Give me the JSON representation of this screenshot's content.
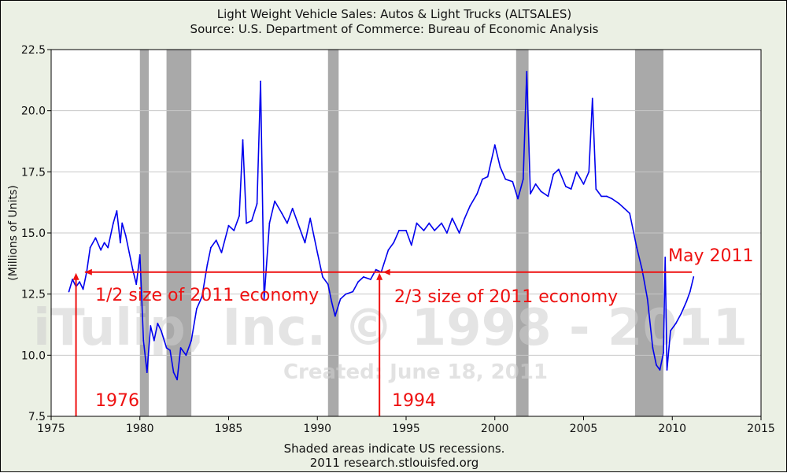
{
  "header": {
    "title_line1": "Light Weight Vehicle Sales: Autos & Light Trucks (ALTSALES)",
    "title_line2": "Source: U.S. Department of Commerce: Bureau of Economic Analysis"
  },
  "footer": {
    "line1": "Shaded areas indicate US recessions.",
    "line2": "2011 research.stlouisfed.org"
  },
  "watermark": {
    "main": "iTulip, Inc. © 1998 - 2011",
    "created": "Created: June 18, 2011"
  },
  "colors": {
    "background": "#ebf0e4",
    "plot_background": "#ffffff",
    "series": "#0000ee",
    "recession": "#a9a9a9",
    "annotation": "#ee1111"
  },
  "chart_data": {
    "type": "line",
    "title": "Light Weight Vehicle Sales: Autos & Light Trucks (ALTSALES)",
    "subtitle": "Source: U.S. Department of Commerce: Bureau of Economic Analysis",
    "xlabel": "",
    "ylabel": "(Millions of Units)",
    "xlim": [
      1975,
      2015
    ],
    "ylim": [
      7.5,
      22.5
    ],
    "x_ticks": [
      1975,
      1980,
      1985,
      1990,
      1995,
      2000,
      2005,
      2010,
      2015
    ],
    "y_ticks": [
      "7.5",
      "10.0",
      "12.5",
      "15.0",
      "17.5",
      "20.0",
      "22.5"
    ],
    "grid": true,
    "recessions": [
      [
        1980.0,
        1980.5
      ],
      [
        1981.5,
        1982.9
      ],
      [
        1990.6,
        1991.2
      ],
      [
        2001.2,
        2001.9
      ],
      [
        2007.9,
        2009.5
      ]
    ],
    "series": [
      {
        "x": [
          1976.0,
          1976.2,
          1976.4,
          1976.6,
          1976.8,
          1977.0,
          1977.2,
          1977.5,
          1977.8,
          1978.0,
          1978.2,
          1978.5,
          1978.7,
          1978.9,
          1979.0,
          1979.2,
          1979.4,
          1979.6,
          1979.8,
          1980.0,
          1980.2,
          1980.4,
          1980.6,
          1980.8,
          1981.0,
          1981.2,
          1981.5,
          1981.7,
          1981.9,
          1982.1,
          1982.3,
          1982.6,
          1982.9,
          1983.2,
          1983.5,
          1983.8,
          1984.0,
          1984.3,
          1984.6,
          1985.0,
          1985.3,
          1985.6,
          1985.8,
          1986.0,
          1986.3,
          1986.6,
          1986.8,
          1987.0,
          1987.3,
          1987.6,
          1988.0,
          1988.3,
          1988.6,
          1989.0,
          1989.3,
          1989.6,
          1990.0,
          1990.3,
          1990.6,
          1990.8,
          1991.0,
          1991.3,
          1991.6,
          1992.0,
          1992.3,
          1992.6,
          1993.0,
          1993.3,
          1993.6,
          1994.0,
          1994.3,
          1994.6,
          1995.0,
          1995.3,
          1995.6,
          1996.0,
          1996.3,
          1996.6,
          1997.0,
          1997.3,
          1997.6,
          1998.0,
          1998.3,
          1998.6,
          1999.0,
          1999.3,
          1999.6,
          2000.0,
          2000.3,
          2000.6,
          2001.0,
          2001.3,
          2001.6,
          2001.8,
          2002.0,
          2002.3,
          2002.6,
          2003.0,
          2003.3,
          2003.6,
          2004.0,
          2004.3,
          2004.6,
          2005.0,
          2005.3,
          2005.5,
          2005.7,
          2006.0,
          2006.3,
          2006.6,
          2007.0,
          2007.3,
          2007.6,
          2008.0,
          2008.3,
          2008.6,
          2008.9,
          2009.1,
          2009.3,
          2009.5,
          2009.6,
          2009.7,
          2009.9,
          2010.2,
          2010.5,
          2010.8,
          2011.0,
          2011.2
        ],
        "y": [
          12.6,
          13.1,
          12.8,
          13.0,
          12.7,
          13.4,
          14.4,
          14.8,
          14.3,
          14.6,
          14.4,
          15.4,
          15.9,
          14.6,
          15.4,
          14.9,
          14.2,
          13.5,
          12.9,
          14.1,
          10.6,
          9.3,
          11.2,
          10.6,
          11.3,
          11.0,
          10.3,
          10.2,
          9.3,
          9.0,
          10.3,
          10.0,
          10.6,
          11.9,
          12.4,
          13.7,
          14.4,
          14.7,
          14.2,
          15.3,
          15.1,
          15.7,
          18.8,
          15.4,
          15.5,
          16.2,
          21.2,
          12.3,
          15.4,
          16.3,
          15.8,
          15.4,
          16.0,
          15.2,
          14.6,
          15.6,
          14.2,
          13.2,
          12.9,
          12.2,
          11.6,
          12.3,
          12.5,
          12.6,
          13.0,
          13.2,
          13.1,
          13.5,
          13.4,
          14.3,
          14.6,
          15.1,
          15.1,
          14.5,
          15.4,
          15.1,
          15.4,
          15.1,
          15.4,
          15.0,
          15.6,
          15.0,
          15.6,
          16.1,
          16.6,
          17.2,
          17.3,
          18.6,
          17.7,
          17.2,
          17.1,
          16.4,
          17.2,
          21.6,
          16.6,
          17.0,
          16.7,
          16.5,
          17.4,
          17.6,
          16.9,
          16.8,
          17.5,
          17.0,
          17.5,
          20.5,
          16.8,
          16.5,
          16.5,
          16.4,
          16.2,
          16.0,
          15.8,
          14.4,
          13.5,
          12.3,
          10.3,
          9.6,
          9.4,
          10.1,
          14.0,
          9.4,
          11.0,
          11.3,
          11.7,
          12.2,
          12.6,
          13.2
        ]
      }
    ],
    "annotations": [
      "1/2 size of 2011 economy",
      "2/3 size of 2011 economy",
      "May 2011",
      "1976",
      "1994"
    ]
  }
}
